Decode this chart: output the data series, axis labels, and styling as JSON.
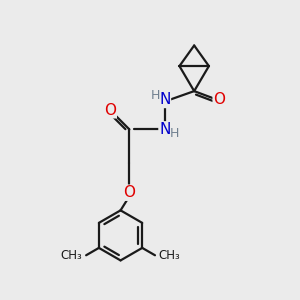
{
  "background_color": "#ebebeb",
  "bond_color": "#1a1a1a",
  "bond_width": 1.6,
  "atom_colors": {
    "O": "#e00000",
    "N": "#0000cc",
    "H": "#708090"
  },
  "font_size_atom": 11,
  "font_size_h": 9,
  "font_size_me": 8.5,
  "canvas_xlim": [
    0,
    10
  ],
  "canvas_ylim": [
    0,
    10
  ]
}
